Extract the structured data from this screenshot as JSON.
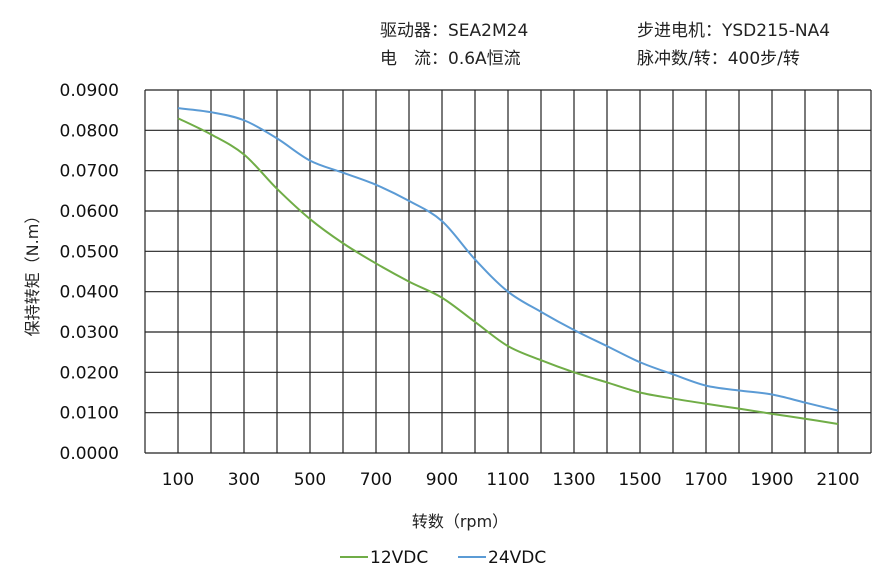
{
  "header": {
    "driver": "驱动器：SEA2M24",
    "motor": "步进电机：YSD215-NA4",
    "current": "电　流：0.6A恒流",
    "pulses": "脉冲数/转：400步/转"
  },
  "chart_data": {
    "type": "line",
    "title": "",
    "xlabel": "转数（rpm）",
    "ylabel": "保持转矩（N.m）",
    "xlim": [
      0,
      2200
    ],
    "ylim": [
      0,
      0.09
    ],
    "grid": true,
    "legend_placement": "bottom",
    "x_ticks": [
      "100",
      "300",
      "500",
      "700",
      "900",
      "1100",
      "1300",
      "1500",
      "1700",
      "1900",
      "2100"
    ],
    "y_ticks": [
      "0.0000",
      "0.0100",
      "0.0200",
      "0.0300",
      "0.0400",
      "0.0500",
      "0.0600",
      "0.0700",
      "0.0800",
      "0.0900"
    ],
    "x": [
      100,
      200,
      300,
      400,
      500,
      600,
      700,
      800,
      900,
      1000,
      1100,
      1200,
      1300,
      1400,
      1500,
      1600,
      1700,
      1800,
      1900,
      2000,
      2100
    ],
    "series": [
      {
        "name": "12VDC",
        "color": "#70ad47",
        "values": [
          0.083,
          0.079,
          0.074,
          0.0655,
          0.058,
          0.052,
          0.047,
          0.0425,
          0.0385,
          0.0325,
          0.0265,
          0.023,
          0.02,
          0.0175,
          0.015,
          0.0135,
          0.0122,
          0.011,
          0.0097,
          0.0085,
          0.0072
        ]
      },
      {
        "name": "24VDC",
        "color": "#5b9bd5",
        "values": [
          0.0855,
          0.0845,
          0.0825,
          0.078,
          0.0725,
          0.0695,
          0.0665,
          0.0625,
          0.0575,
          0.048,
          0.04,
          0.035,
          0.0305,
          0.0265,
          0.0225,
          0.0195,
          0.0167,
          0.0155,
          0.0145,
          0.0125,
          0.0105
        ]
      }
    ]
  }
}
